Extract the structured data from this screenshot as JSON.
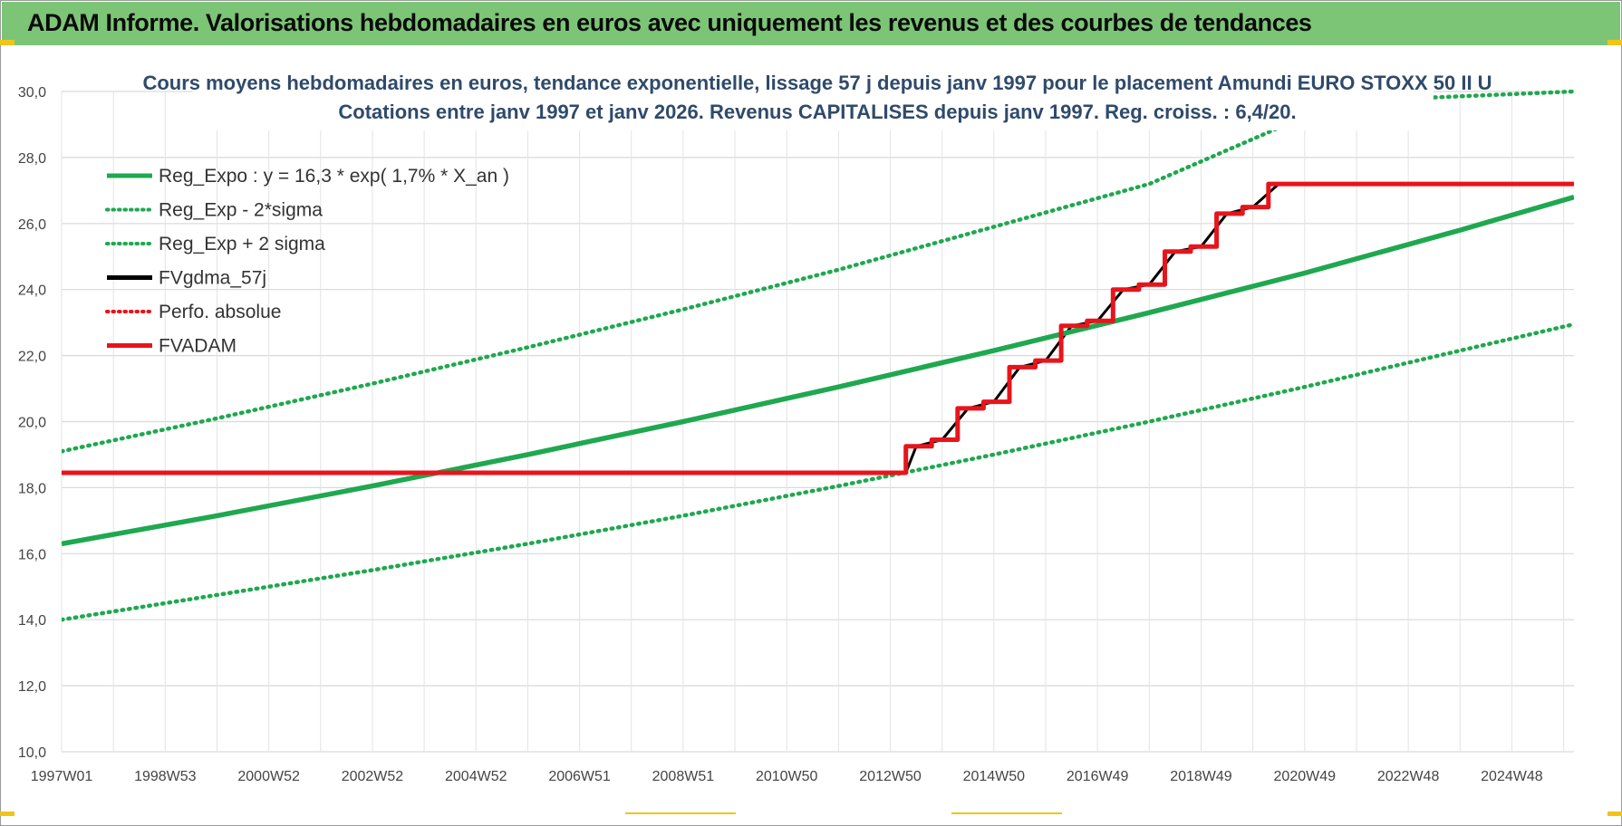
{
  "banner": {
    "title": "ADAM Informe. Valorisations hebdomadaires en euros avec uniquement les revenus et des courbes de tendances"
  },
  "colors": {
    "banner_bg": "#7cc576",
    "reg_expo": "#1fa84f",
    "fvgdma": "#000000",
    "perfo": "#e8141b",
    "fvadam": "#e8141b",
    "accent": "#f0c419"
  },
  "chart_data": {
    "type": "line",
    "title": "Cours moyens hebdomadaires en euros, tendance exponentielle, lissage 57 j depuis janv 1997  pour le placement Amundi EURO STOXX 50 II U",
    "subtitle": "Cotations entre janv 1997 et janv 2026. Revenus CAPITALISES depuis janv 1997. Reg. croiss. : 6,4/20.",
    "xlabel": "",
    "ylabel": "",
    "ylim": [
      10,
      30
    ],
    "y_ticks": [
      "10,0",
      "12,0",
      "14,0",
      "16,0",
      "18,0",
      "20,0",
      "22,0",
      "24,0",
      "26,0",
      "28,0",
      "30,0"
    ],
    "x_range_years": [
      1997.0,
      2026.2
    ],
    "x_ticks": [
      {
        "label": "1997W01",
        "year": 1997.0
      },
      {
        "label": "1998W53",
        "year": 1999.0
      },
      {
        "label": "2000W52",
        "year": 2001.0
      },
      {
        "label": "2002W52",
        "year": 2003.0
      },
      {
        "label": "2004W52",
        "year": 2005.0
      },
      {
        "label": "2006W51",
        "year": 2007.0
      },
      {
        "label": "2008W51",
        "year": 2009.0
      },
      {
        "label": "2010W50",
        "year": 2011.0
      },
      {
        "label": "2012W50",
        "year": 2013.0
      },
      {
        "label": "2014W50",
        "year": 2015.0
      },
      {
        "label": "2016W49",
        "year": 2017.0
      },
      {
        "label": "2018W49",
        "year": 2019.0
      },
      {
        "label": "2020W49",
        "year": 2021.0
      },
      {
        "label": "2022W48",
        "year": 2023.0
      },
      {
        "label": "2024W48",
        "year": 2025.0
      }
    ],
    "grid": true,
    "legend_position": "top-left",
    "series": [
      {
        "name": "Reg_Expo : y = 16,3 * exp( 1,7% *  X_an )",
        "style": "solid",
        "color": "#1fa84f",
        "x": [
          1997,
          2000,
          2003,
          2006,
          2009,
          2012,
          2015,
          2018,
          2021,
          2024,
          2026.2
        ],
        "values": [
          16.3,
          17.15,
          18.05,
          19.0,
          20.0,
          21.05,
          22.15,
          23.3,
          24.5,
          25.8,
          26.8
        ]
      },
      {
        "name": "Reg_Exp - 2*sigma",
        "style": "dotted",
        "color": "#1fa84f",
        "x": [
          1997,
          2000,
          2003,
          2006,
          2009,
          2012,
          2015,
          2018,
          2021,
          2024,
          2026.2
        ],
        "values": [
          14.0,
          14.75,
          15.5,
          16.3,
          17.15,
          18.05,
          19.0,
          20.0,
          21.05,
          22.15,
          22.95
        ]
      },
      {
        "name": "Reg_Exp + 2 sigma",
        "style": "dotted",
        "color": "#1fa84f",
        "x": [
          1997,
          2000,
          2003,
          2006,
          2009,
          2012,
          2015,
          2018,
          2020.5,
          2023.2,
          2026.2
        ],
        "values": [
          19.1,
          20.1,
          21.15,
          22.25,
          23.4,
          24.6,
          25.9,
          27.2,
          28.9,
          29.8,
          30.0
        ]
      },
      {
        "name": "FVgdma_57j",
        "style": "solid",
        "color": "#000000",
        "x": [
          1997,
          2013.3,
          2013.5,
          2014.0,
          2014.5,
          2015.0,
          2015.5,
          2016.0,
          2016.5,
          2017.0,
          2017.5,
          2018.0,
          2018.5,
          2019.0,
          2019.5,
          2020.0,
          2020.5,
          2026.2
        ],
        "values": [
          18.45,
          18.45,
          19.25,
          19.45,
          20.4,
          20.6,
          21.65,
          21.85,
          22.9,
          23.05,
          24.0,
          24.15,
          25.15,
          25.3,
          26.3,
          26.5,
          27.2,
          27.2
        ]
      },
      {
        "name": "Perfo. absolue",
        "style": "dotted",
        "color": "#e8141b",
        "x": [],
        "values": []
      },
      {
        "name": "FVADAM",
        "style": "solid",
        "color": "#e8141b",
        "x": [
          1997,
          2013.3,
          2013.3,
          2013.8,
          2013.8,
          2014.3,
          2014.3,
          2014.8,
          2014.8,
          2015.3,
          2015.3,
          2015.8,
          2015.8,
          2016.3,
          2016.3,
          2016.8,
          2016.8,
          2017.3,
          2017.3,
          2017.8,
          2017.8,
          2018.3,
          2018.3,
          2018.8,
          2018.8,
          2019.3,
          2019.3,
          2019.8,
          2019.8,
          2020.3,
          2020.3,
          2026.2
        ],
        "values": [
          18.45,
          18.45,
          19.25,
          19.25,
          19.45,
          19.45,
          20.4,
          20.4,
          20.6,
          20.6,
          21.65,
          21.65,
          21.85,
          21.85,
          22.9,
          22.9,
          23.05,
          23.05,
          24.0,
          24.0,
          24.15,
          24.15,
          25.15,
          25.15,
          25.3,
          25.3,
          26.3,
          26.3,
          26.5,
          26.5,
          27.2,
          27.2
        ]
      }
    ]
  }
}
